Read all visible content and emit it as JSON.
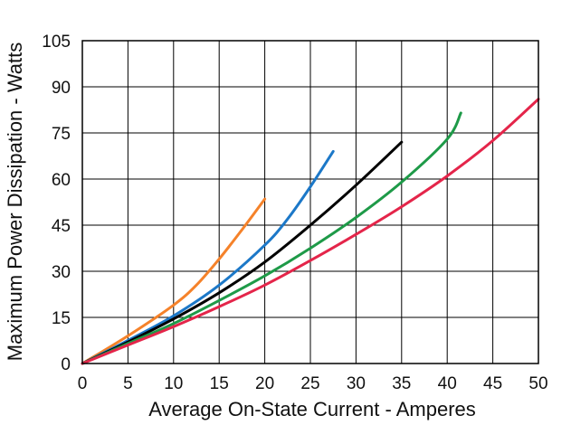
{
  "chart_data": {
    "type": "line",
    "xlabel": "Average On-State Current - Amperes",
    "ylabel": "Maximum Power Dissipation - Watts",
    "xlim": [
      0,
      50
    ],
    "ylim": [
      0,
      105
    ],
    "x_ticks": [
      "0",
      "5",
      "10",
      "15",
      "20",
      "25",
      "30",
      "35",
      "40",
      "45",
      "50"
    ],
    "y_ticks": [
      "0",
      "15",
      "30",
      "45",
      "60",
      "75",
      "90",
      "105"
    ],
    "grid": true,
    "legend": "none",
    "series": [
      {
        "color": "#f5822a",
        "x": [
          0,
          5,
          10,
          12.5,
          15,
          17.5,
          20
        ],
        "y": [
          0,
          9,
          19,
          25.5,
          34,
          43.5,
          53.5
        ]
      },
      {
        "color": "#1c78c8",
        "x": [
          0,
          5,
          10,
          15,
          20,
          22.5,
          25,
          27.5
        ],
        "y": [
          0,
          7.5,
          15.5,
          25.5,
          38.5,
          47,
          57.5,
          69
        ]
      },
      {
        "color": "#000000",
        "x": [
          0,
          5,
          10,
          15,
          20,
          25,
          30,
          35
        ],
        "y": [
          0,
          7,
          14.5,
          23,
          33,
          45,
          58,
          72
        ]
      },
      {
        "color": "#1e9a48",
        "x": [
          0,
          5,
          10,
          15,
          20,
          25,
          30,
          35,
          40,
          41.5
        ],
        "y": [
          0,
          6.5,
          13,
          20.5,
          28.5,
          37.5,
          47.5,
          59,
          73,
          81.5
        ]
      },
      {
        "color": "#e4254a",
        "x": [
          0,
          5,
          10,
          15,
          20,
          25,
          30,
          35,
          40,
          45,
          50
        ],
        "y": [
          0,
          6,
          12,
          18.5,
          25.5,
          33.5,
          42,
          51,
          61,
          72.5,
          86
        ]
      }
    ]
  }
}
